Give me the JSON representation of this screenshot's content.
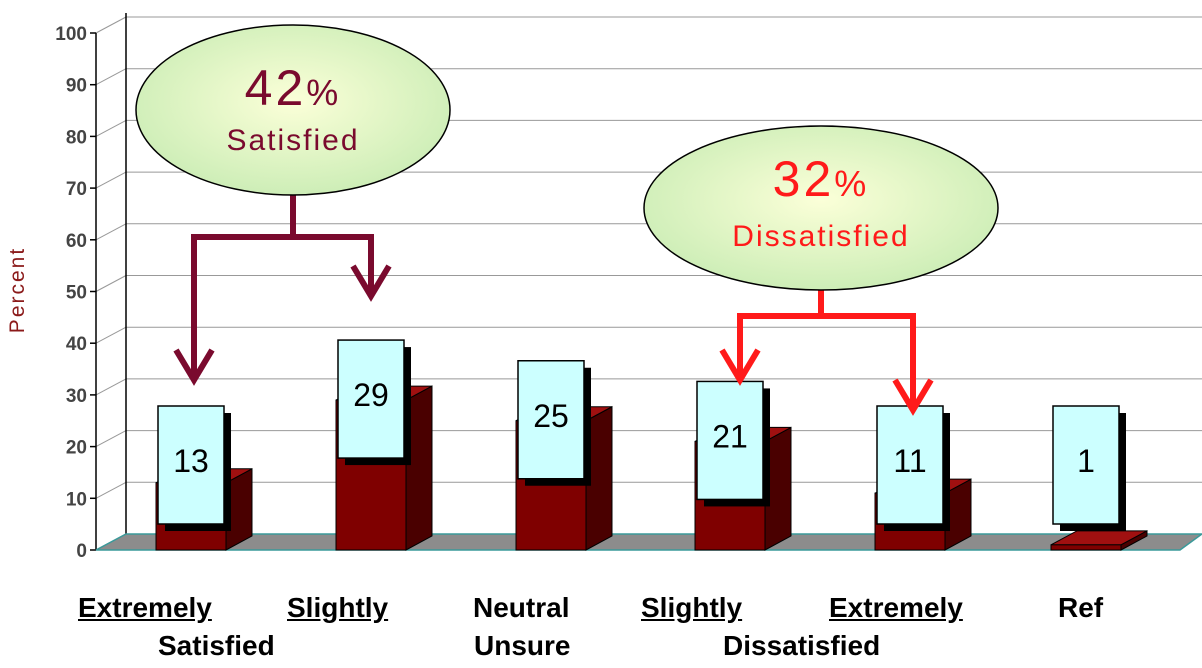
{
  "chart_data": {
    "type": "bar",
    "categories": [
      "Extremely",
      "Slightly",
      "Neutral",
      "Slightly",
      "Extremely",
      "Ref"
    ],
    "values": [
      13,
      29,
      25,
      21,
      11,
      1
    ],
    "ylabel": "Percent",
    "ylim": [
      0,
      100
    ],
    "yticks": [
      "0",
      "10",
      "20",
      "30",
      "40",
      "50",
      "60",
      "70",
      "80",
      "90",
      "100"
    ],
    "data_labels": [
      "13",
      "29",
      "25",
      "21",
      "11",
      "1"
    ],
    "group_labels": [
      "Satisfied",
      "Unsure",
      "Dissatisfied"
    ],
    "grid": true,
    "three_d": true
  },
  "callouts": [
    {
      "value": "42%",
      "label": "Satisfied",
      "color": "#7a0a2e"
    },
    {
      "value": "32%",
      "label": "Dissatisfied",
      "color": "#ff1a1a"
    }
  ],
  "colors": {
    "bar_front": "#7f0000",
    "bar_top": "#a01010",
    "bar_side": "#4a0000",
    "label_box": "#ccffff",
    "floor": "#8c8c8c",
    "ellipse_fill": "#eef8c8"
  }
}
